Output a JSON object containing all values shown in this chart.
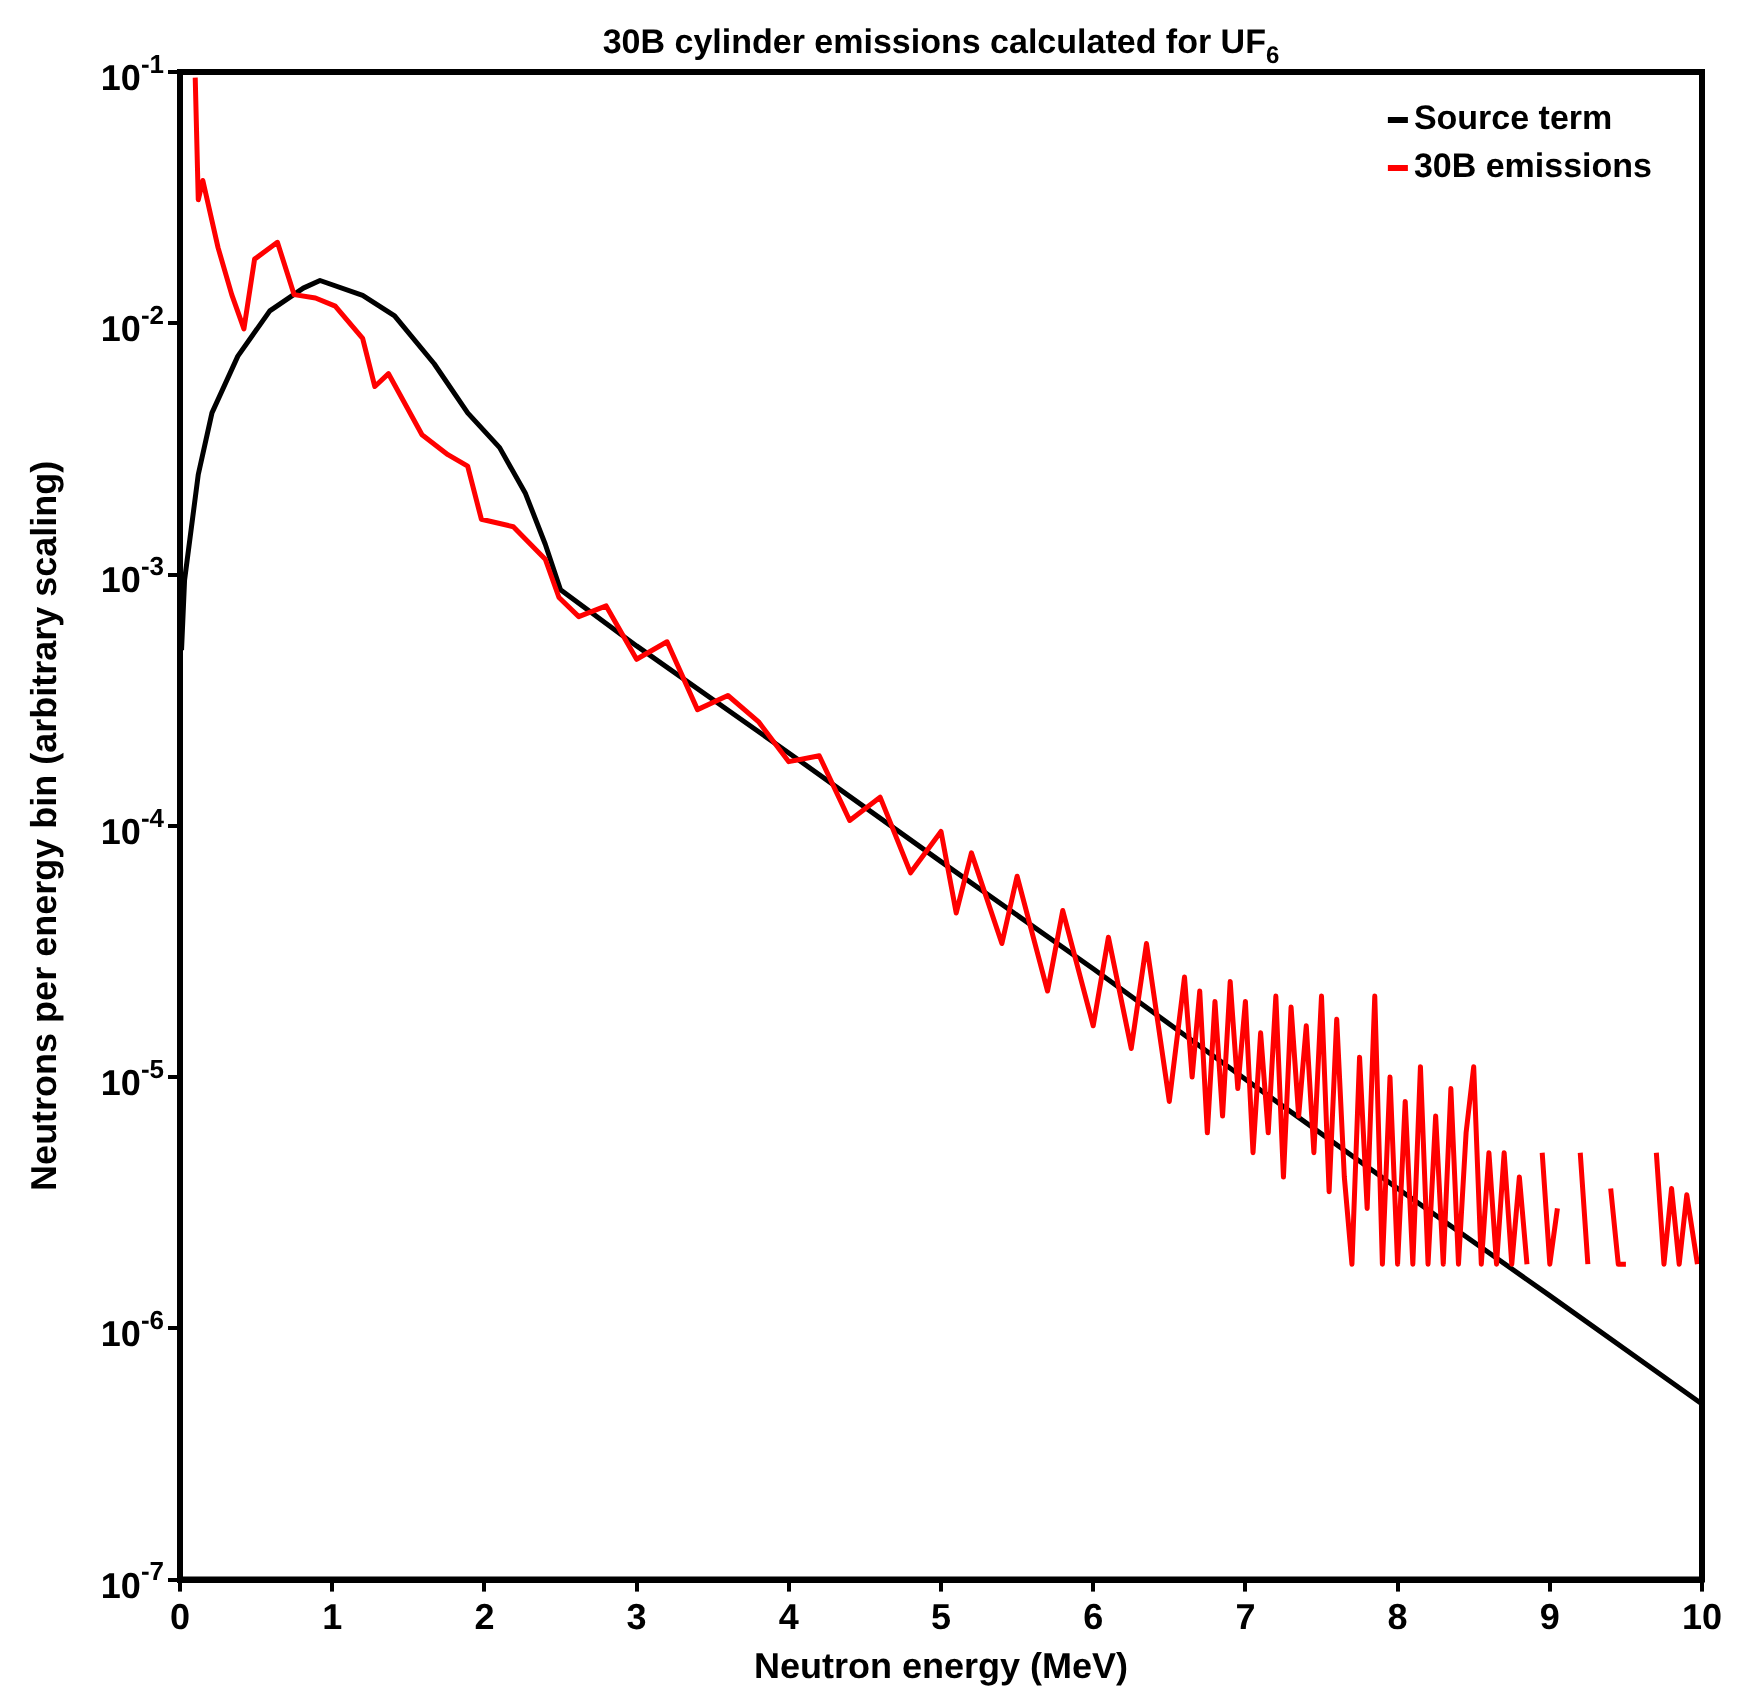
{
  "chart_data": {
    "type": "line",
    "title": "30B cylinder emissions calculated for UF$_{6}$",
    "xlabel": "Neutron energy (MeV)",
    "ylabel": "Neutrons per energy bin (arbitrary scaling)",
    "xlim": [
      0,
      10
    ],
    "xticks": [
      0,
      1,
      2,
      3,
      4,
      5,
      6,
      7,
      8,
      9,
      10
    ],
    "ylim": [
      1e-07,
      0.1
    ],
    "log": "y",
    "yticks": [
      {
        "value": 1e-07,
        "label": "10$^{-7}$"
      },
      {
        "value": 1e-06,
        "label": "10$^{-6}$"
      },
      {
        "value": 1e-05,
        "label": "10$^{-5}$"
      },
      {
        "value": 0.0001,
        "label": "10$^{-4}$"
      },
      {
        "value": 0.001,
        "label": "10$^{-3}$"
      },
      {
        "value": 0.01,
        "label": "10$^{-2}$"
      },
      {
        "value": 0.1,
        "label": "10$^{-1}$"
      }
    ],
    "grid": false,
    "legend": "top right",
    "series": [
      {
        "name": "Source term",
        "color": "#000000",
        "x": [
          0.01,
          0.03,
          0.12,
          0.21,
          0.38,
          0.59,
          0.81,
          0.92,
          1.2,
          1.41,
          1.67,
          1.89,
          2.1,
          2.27,
          2.4,
          2.5,
          3,
          4,
          5,
          6,
          7,
          8,
          9,
          10
        ],
        "values": [
          0.0005,
          0.00095,
          0.0025,
          0.0044,
          0.0074,
          0.0112,
          0.0138,
          0.0148,
          0.0129,
          0.0107,
          0.0069,
          0.0044,
          0.0032,
          0.0021,
          0.00132,
          0.00087,
          0.00052,
          0.000195,
          7.2e-05,
          2.7e-05,
          9.8e-06,
          3.6e-06,
          1.35e-06,
          5e-07
        ]
      },
      {
        "name": "30B emissions",
        "color": "#ff0000",
        "x": [
          0.1,
          0.12,
          0.15,
          0.25,
          0.34,
          0.42,
          0.49,
          0.64,
          0.75,
          0.89,
          1.02,
          1.2,
          1.28,
          1.37,
          1.59,
          1.76,
          1.89,
          1.98,
          2.19,
          2.4,
          2.49,
          2.62,
          2.8,
          3.0,
          3.2,
          3.4,
          3.6,
          3.8,
          4.0,
          4.2,
          4.4,
          4.6,
          4.8,
          5.0,
          5.1,
          5.2,
          5.4,
          5.5,
          5.7,
          5.8,
          6.0,
          6.1,
          6.25,
          6.35,
          6.5,
          6.6,
          6.65,
          6.7,
          6.75,
          6.8,
          6.85,
          6.9,
          6.95,
          7.0,
          7.05,
          7.1,
          7.15,
          7.2,
          7.25,
          7.3,
          7.35,
          7.4,
          7.45,
          7.5,
          7.55,
          7.6,
          7.65,
          7.7,
          7.75,
          7.8,
          7.85,
          7.9,
          7.95,
          8.0,
          8.05,
          8.1,
          8.15,
          8.2,
          8.25,
          8.3,
          8.35,
          8.4,
          8.45,
          8.5,
          8.55,
          8.6,
          8.65,
          8.7,
          8.75,
          8.8,
          8.85,
          8.9,
          8.95,
          9.0,
          9.05,
          9.1,
          9.2,
          9.25,
          9.3,
          9.4,
          9.45,
          9.5,
          9.55,
          9.7,
          9.75,
          9.8,
          9.85,
          9.9,
          9.97
        ],
        "values": [
          0.095,
          0.031,
          0.037,
          0.02,
          0.013,
          0.0095,
          0.018,
          0.021,
          0.013,
          0.0126,
          0.0117,
          0.0087,
          0.0056,
          0.0063,
          0.0036,
          0.003,
          0.0027,
          0.00166,
          0.00155,
          0.00115,
          0.00081,
          0.00068,
          0.00075,
          0.00046,
          0.00054,
          0.00029,
          0.00033,
          0.00026,
          0.00018,
          0.00019,
          0.000105,
          0.00013,
          6.5e-05,
          9.5e-05,
          4.5e-05,
          7.8e-05,
          3.4e-05,
          6.3e-05,
          2.2e-05,
          4.6e-05,
          1.6e-05,
          3.6e-05,
          1.3e-05,
          3.4e-05,
          8e-06,
          2.5e-05,
          1e-05,
          2.2e-05,
          6e-06,
          2e-05,
          7e-06,
          2.4e-05,
          9e-06,
          2e-05,
          5e-06,
          1.5e-05,
          6e-06,
          2.1e-05,
          4e-06,
          1.9e-05,
          7e-06,
          1.6e-05,
          5e-06,
          2.1e-05,
          3.5e-06,
          1.7e-05,
          4e-06,
          1.8e-06,
          1.2e-05,
          3e-06,
          2.1e-05,
          1.8e-06,
          1e-05,
          1.8e-06,
          8e-06,
          1.8e-06,
          1.1e-05,
          1.8e-06,
          7e-06,
          1.8e-06,
          9e-06,
          1.8e-06,
          6e-06,
          1.1e-05,
          1.8e-06,
          5e-06,
          1.8e-06,
          5e-06,
          1.8e-06,
          4e-06,
          1.8e-06,
          null,
          5e-06,
          1.8e-06,
          3e-06,
          null,
          5e-06,
          1.8e-06,
          null,
          3.6e-06,
          1.8e-06,
          1.8e-06,
          null,
          5e-06,
          1.8e-06,
          3.6e-06,
          1.8e-06,
          3.4e-06,
          1.8e-06
        ]
      }
    ]
  }
}
